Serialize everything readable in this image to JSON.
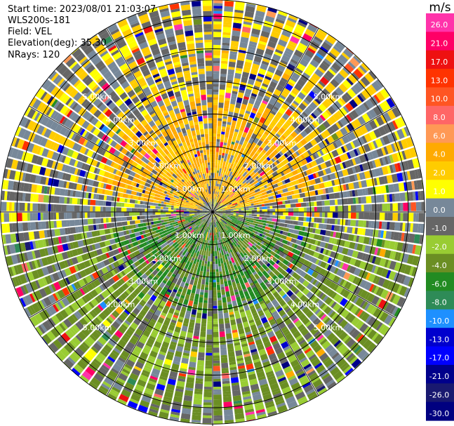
{
  "info": {
    "start_time": "Start time: 2023/08/01 21:03:07",
    "station": "WLS200s-181",
    "field": "Field: VEL",
    "elevation": "Elevation(deg): 35.30",
    "nrays": "NRays: 120"
  },
  "chart_data": {
    "type": "heatmap",
    "projection": "polar PPI",
    "field": "VEL",
    "nrays": 120,
    "range_rings_km": [
      1,
      2,
      3,
      4,
      5,
      6
    ],
    "range_labels": [
      "1.00km",
      "2.00km",
      "3.00km",
      "4.00km",
      "5.00km"
    ],
    "max_range_km": 6.5,
    "colorbar": {
      "unit": "m/s",
      "tick_labels": [
        "26.0",
        "21.0",
        "17.0",
        "13.0",
        "10.0",
        "8.0",
        "6.0",
        "4.0",
        "2.0",
        "1.0",
        "0.0",
        "-1.0",
        "-2.0",
        "-4.0",
        "-6.0",
        "-8.0",
        "-10.0",
        "-13.0",
        "-17.0",
        "-21.0",
        "-26.0",
        "-30.0"
      ],
      "bins": [
        {
          "min": 26,
          "max": 30,
          "color": "#ff33aa"
        },
        {
          "min": 21,
          "max": 26,
          "color": "#ff0066"
        },
        {
          "min": 17,
          "max": 21,
          "color": "#ee1111"
        },
        {
          "min": 13,
          "max": 17,
          "color": "#ff3300"
        },
        {
          "min": 10,
          "max": 13,
          "color": "#ff5522"
        },
        {
          "min": 8,
          "max": 10,
          "color": "#ff6666"
        },
        {
          "min": 6,
          "max": 8,
          "color": "#ff9955"
        },
        {
          "min": 4,
          "max": 6,
          "color": "#ffaa00"
        },
        {
          "min": 2,
          "max": 4,
          "color": "#ffcc00"
        },
        {
          "min": 1,
          "max": 2,
          "color": "#ffff00"
        },
        {
          "min": 0,
          "max": 1,
          "color": "#778899"
        },
        {
          "min": -1,
          "max": 0,
          "color": "#666666"
        },
        {
          "min": -2,
          "max": -1,
          "color": "#99cc33"
        },
        {
          "min": -4,
          "max": -2,
          "color": "#6b8e23"
        },
        {
          "min": -6,
          "max": -4,
          "color": "#228b22"
        },
        {
          "min": -8,
          "max": -6,
          "color": "#2e8b57"
        },
        {
          "min": -10,
          "max": -8,
          "color": "#1e90ff"
        },
        {
          "min": -13,
          "max": -10,
          "color": "#0000cd"
        },
        {
          "min": -17,
          "max": -13,
          "color": "#0000ff"
        },
        {
          "min": -21,
          "max": -17,
          "color": "#00008b"
        },
        {
          "min": -26,
          "max": -21,
          "color": "#191970"
        },
        {
          "min": -30,
          "max": -26,
          "color": "#000080"
        }
      ]
    },
    "velocity_regions": [
      {
        "sector": "north",
        "azimuth_deg": [
          280,
          80
        ],
        "range_km": [
          0.3,
          3.5
        ],
        "dominant_ms": [
          2,
          6
        ]
      },
      {
        "sector": "north",
        "azimuth_deg": [
          280,
          80
        ],
        "range_km": [
          3.5,
          6.5
        ],
        "dominant_ms": [
          -1,
          4
        ]
      },
      {
        "sector": "south",
        "azimuth_deg": [
          100,
          260
        ],
        "range_km": [
          0.3,
          3.0
        ],
        "dominant_ms": [
          -6,
          -2
        ]
      },
      {
        "sector": "south",
        "azimuth_deg": [
          100,
          260
        ],
        "range_km": [
          3.0,
          6.5
        ],
        "dominant_ms": [
          -4,
          -1
        ]
      }
    ]
  }
}
